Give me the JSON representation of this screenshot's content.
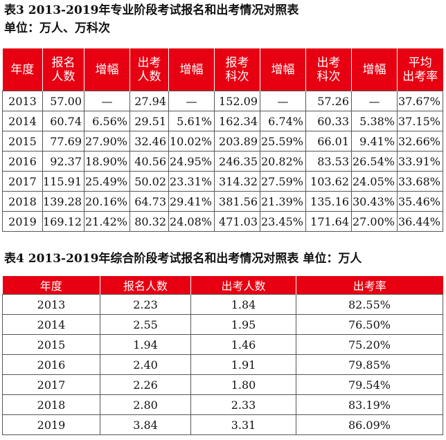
{
  "table3": {
    "caption": "表3  2013-2019年专业阶段考试报名和出考情况对照表",
    "unit": "单位：万人、万科次",
    "headers": [
      [
        "年度"
      ],
      [
        "报名",
        "人数"
      ],
      [
        "增幅"
      ],
      [
        "出考",
        "人数"
      ],
      [
        "增幅"
      ],
      [
        "报考",
        "科次"
      ],
      [
        "增幅"
      ],
      [
        "出考",
        "科次"
      ],
      [
        "增幅"
      ],
      [
        "平均",
        "出考率"
      ]
    ],
    "rows": [
      [
        "2013",
        "57.00",
        "—",
        "27.94",
        "—",
        "152.09",
        "—",
        "57.26",
        "—",
        "37.67%"
      ],
      [
        "2014",
        "60.74",
        "6.56%",
        "29.51",
        "5.61%",
        "162.34",
        "6.74%",
        "60.33",
        "5.38%",
        "37.15%"
      ],
      [
        "2015",
        "77.69",
        "27.90%",
        "32.46",
        "10.02%",
        "203.89",
        "25.59%",
        "66.01",
        "9.41%",
        "32.66%"
      ],
      [
        "2016",
        "92.37",
        "18.90%",
        "40.56",
        "24.95%",
        "246.35",
        "20.82%",
        "83.53",
        "26.54%",
        "33.91%"
      ],
      [
        "2017",
        "115.91",
        "25.49%",
        "50.02",
        "23.31%",
        "314.32",
        "27.59%",
        "103.62",
        "24.05%",
        "33.68%"
      ],
      [
        "2018",
        "139.28",
        "20.16%",
        "64.73",
        "29.41%",
        "381.56",
        "21.39%",
        "135.16",
        "30.43%",
        "35.46%"
      ],
      [
        "2019",
        "169.12",
        "21.42%",
        "80.32",
        "24.08%",
        "471.03",
        "23.45%",
        "171.64",
        "27.00%",
        "36.44%"
      ]
    ]
  },
  "table4": {
    "caption": "表4  2013-2019年综合阶段考试报名和出考情况对照表  单位：万人",
    "headers": [
      "年度",
      "报名人数",
      "出考人数",
      "出考率"
    ],
    "rows": [
      [
        "2013",
        "2.23",
        "1.84",
        "82.55%"
      ],
      [
        "2014",
        "2.55",
        "1.95",
        "76.50%"
      ],
      [
        "2015",
        "1.94",
        "1.46",
        "75.20%"
      ],
      [
        "2016",
        "2.40",
        "1.91",
        "79.85%"
      ],
      [
        "2017",
        "2.26",
        "1.80",
        "79.54%"
      ],
      [
        "2018",
        "2.80",
        "2.33",
        "83.19%"
      ],
      [
        "2019",
        "3.84",
        "3.31",
        "86.09%"
      ]
    ]
  },
  "colors": {
    "header_bg": "#e60012",
    "header_text": "#ffffff"
  }
}
